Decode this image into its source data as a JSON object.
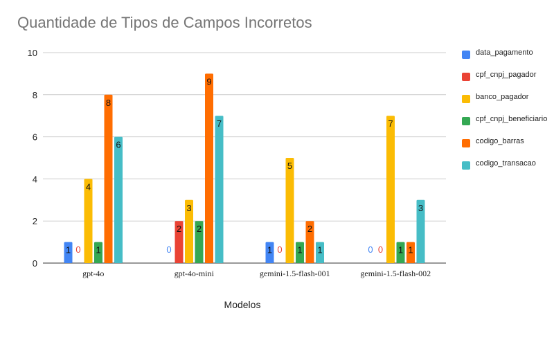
{
  "chart_data": {
    "type": "bar",
    "title": "Quantidade de Tipos de Campos Incorretos",
    "xlabel": "Modelos",
    "ylabel": "",
    "ylim": [
      0,
      10
    ],
    "yticks": [
      "0",
      "2",
      "4",
      "6",
      "8",
      "10"
    ],
    "categories": [
      "gpt-4o",
      "gpt-4o-mini",
      "gemini-1.5-flash-001",
      "gemini-1.5-flash-002"
    ],
    "series": [
      {
        "name": "data_pagamento",
        "color": "#4285f4",
        "values": [
          1,
          0,
          1,
          0
        ]
      },
      {
        "name": "cpf_cnpj_pagador",
        "color": "#ea4335",
        "values": [
          0,
          2,
          0,
          0
        ]
      },
      {
        "name": "banco_pagador",
        "color": "#fbbc04",
        "values": [
          4,
          3,
          5,
          7
        ]
      },
      {
        "name": "cpf_cnpj_beneficiario",
        "color": "#34a853",
        "values": [
          1,
          2,
          1,
          1
        ]
      },
      {
        "name": "codigo_barras",
        "color": "#ff6d01",
        "values": [
          8,
          9,
          2,
          1
        ]
      },
      {
        "name": "codigo_transacao",
        "color": "#46bdc6",
        "values": [
          6,
          7,
          1,
          3
        ]
      }
    ],
    "grid": true,
    "legend_position": "right"
  }
}
